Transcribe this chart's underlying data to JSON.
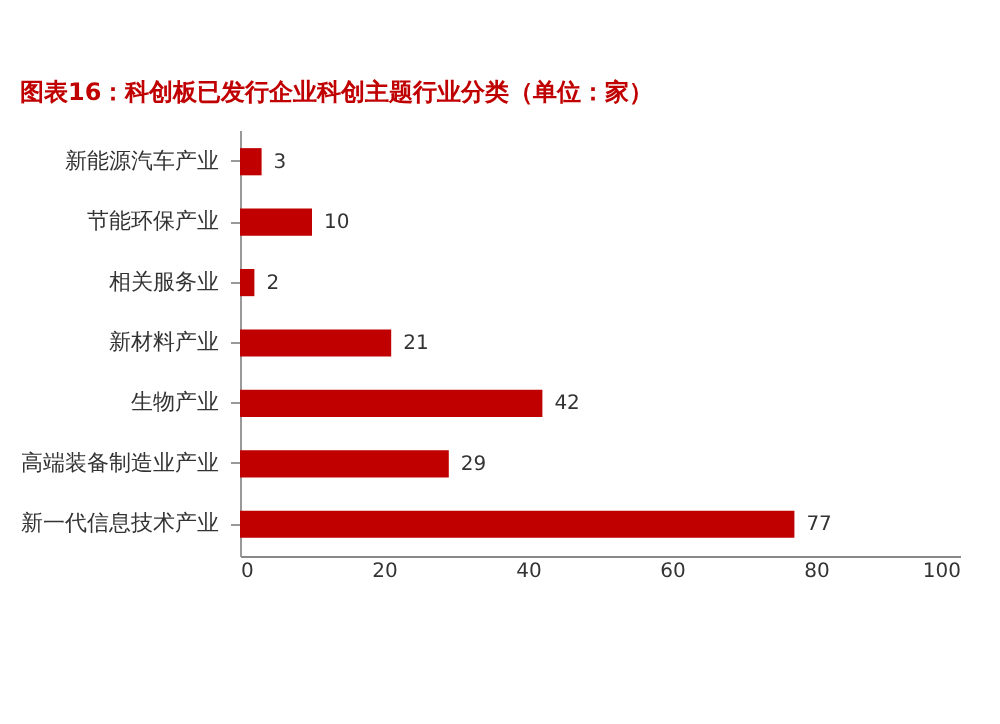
{
  "chart_data": {
    "type": "bar",
    "orientation": "horizontal",
    "title": "图表16：科创板已发行企业科创主题行业分类（单位：家）",
    "categories": [
      "新能源汽车产业",
      "节能环保产业",
      "相关服务业",
      "新材料产业",
      "生物产业",
      "高端装备制造业产业",
      "新一代信息技术产业"
    ],
    "values": [
      3,
      10,
      2,
      21,
      42,
      29,
      77
    ],
    "color": "#c00000",
    "xlim": [
      0,
      100
    ],
    "xticks": [
      0,
      20,
      40,
      60,
      80,
      100
    ],
    "data_labels": true
  }
}
